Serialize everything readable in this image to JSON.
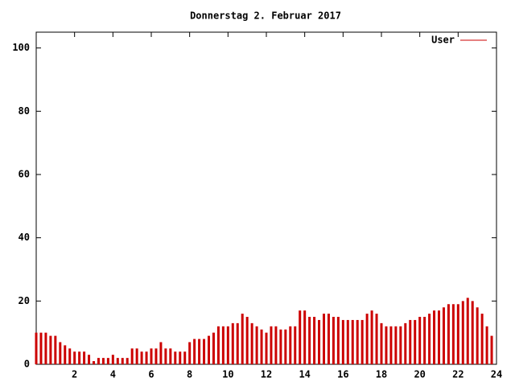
{
  "chart_data": {
    "type": "impulse",
    "title": "Donnerstag 2. Februar 2017",
    "legend": "top-right",
    "series": [
      {
        "name": "User",
        "color": "#cc0000",
        "x": [
          0,
          0.25,
          0.5,
          0.75,
          1,
          1.25,
          1.5,
          1.75,
          2,
          2.25,
          2.5,
          2.75,
          3,
          3.25,
          3.5,
          3.75,
          4,
          4.25,
          4.5,
          4.75,
          5,
          5.25,
          5.5,
          5.75,
          6,
          6.25,
          6.5,
          6.75,
          7,
          7.25,
          7.5,
          7.75,
          8,
          8.25,
          8.5,
          8.75,
          9,
          9.25,
          9.5,
          9.75,
          10,
          10.25,
          10.5,
          10.75,
          11,
          11.25,
          11.5,
          11.75,
          12,
          12.25,
          12.5,
          12.75,
          13,
          13.25,
          13.5,
          13.75,
          14,
          14.25,
          14.5,
          14.75,
          15,
          15.25,
          15.5,
          15.75,
          16,
          16.25,
          16.5,
          16.75,
          17,
          17.25,
          17.5,
          17.75,
          18,
          18.25,
          18.5,
          18.75,
          19,
          19.25,
          19.5,
          19.75,
          20,
          20.25,
          20.5,
          20.75,
          21,
          21.25,
          21.5,
          21.75,
          22,
          22.25,
          22.5,
          22.75,
          23,
          23.25,
          23.5,
          23.75
        ],
        "values": [
          10,
          10,
          10,
          9,
          9,
          7,
          6,
          5,
          4,
          4,
          4,
          3,
          1,
          2,
          2,
          2,
          3,
          2,
          2,
          2,
          5,
          5,
          4,
          4,
          5,
          5,
          7,
          5,
          5,
          4,
          4,
          4,
          7,
          8,
          8,
          8,
          9,
          10,
          12,
          12,
          12,
          13,
          13,
          16,
          15,
          13,
          12,
          11,
          10,
          12,
          12,
          11,
          11,
          12,
          12,
          17,
          17,
          15,
          15,
          14,
          16,
          16,
          15,
          15,
          14,
          14,
          14,
          14,
          14,
          16,
          17,
          16,
          13,
          12,
          12,
          12,
          12,
          13,
          14,
          14,
          15,
          15,
          16,
          17,
          17,
          18,
          19,
          19,
          19,
          20,
          21,
          20,
          18,
          16,
          12,
          9
        ]
      }
    ],
    "xlim": [
      0,
      24
    ],
    "xticks": [
      2,
      4,
      6,
      8,
      10,
      12,
      14,
      16,
      18,
      20,
      22,
      24
    ],
    "ylim": [
      0,
      105
    ],
    "yticks": [
      0,
      20,
      40,
      60,
      80,
      100
    ]
  }
}
